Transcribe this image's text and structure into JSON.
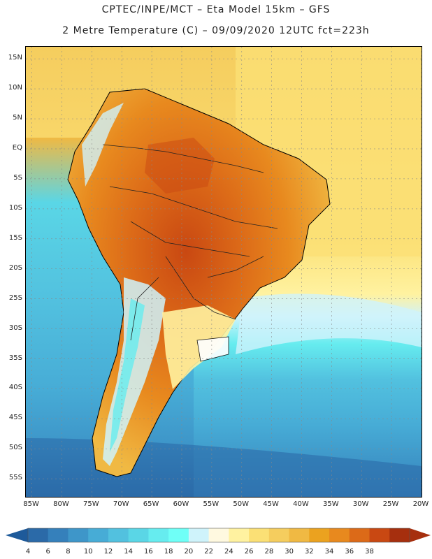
{
  "header": {
    "line1": "CPTEC/INPE/MCT –  Eta Model 15km – GFS",
    "line2": "2 Metre Temperature (C) – 09/09/2020 12UTC fct=223h"
  },
  "axes": {
    "lat_labels": [
      "15N",
      "10N",
      "5N",
      "EQ",
      "5S",
      "10S",
      "15S",
      "20S",
      "25S",
      "30S",
      "35S",
      "40S",
      "45S",
      "50S",
      "55S"
    ],
    "lat_values": [
      15,
      10,
      5,
      0,
      -5,
      -10,
      -15,
      -20,
      -25,
      -30,
      -35,
      -40,
      -45,
      -50,
      -55
    ],
    "lon_labels": [
      "85W",
      "80W",
      "75W",
      "70W",
      "65W",
      "60W",
      "55W",
      "50W",
      "45W",
      "40W",
      "35W",
      "30W",
      "25W",
      "20W"
    ],
    "lon_values": [
      -85,
      -80,
      -75,
      -70,
      -65,
      -60,
      -55,
      -50,
      -45,
      -40,
      -35,
      -30,
      -25,
      -20
    ],
    "lat_range": [
      -58,
      17
    ],
    "lon_range": [
      -86,
      -20
    ]
  },
  "colorbar": {
    "labels": [
      "4",
      "6",
      "8",
      "10",
      "12",
      "14",
      "16",
      "18",
      "20",
      "22",
      "24",
      "26",
      "28",
      "30",
      "32",
      "34",
      "36",
      "38"
    ],
    "colors": [
      "#2b6aa8",
      "#3580bb",
      "#3e96c9",
      "#47acd6",
      "#52c1df",
      "#5ad6e6",
      "#66ecef",
      "#6ffff7",
      "#cff3fb",
      "#fff9e0",
      "#fff2a0",
      "#fbe075",
      "#f5cd5e",
      "#f0b943",
      "#eba21f",
      "#e8891e",
      "#dc6a18",
      "#c94812",
      "#a62f0e"
    ],
    "left_arrow_color": "#1e5a9a",
    "right_arrow_color": "#a62f0e"
  }
}
